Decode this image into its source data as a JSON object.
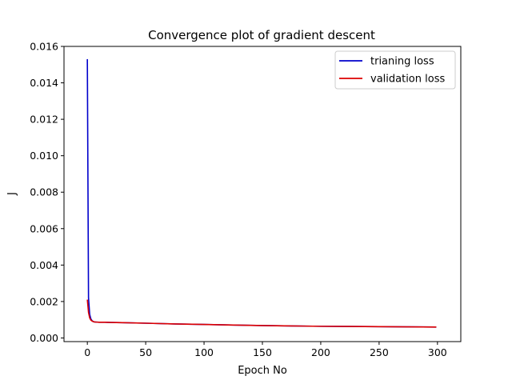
{
  "chart_data": {
    "type": "line",
    "title": "Convergence plot of gradient descent",
    "xlabel": "Epoch No",
    "ylabel": "J",
    "xlim": [
      -20,
      320
    ],
    "ylim": [
      -0.0002,
      0.016
    ],
    "xticks": [
      0,
      50,
      100,
      150,
      200,
      250,
      300
    ],
    "xtick_labels": [
      "0",
      "50",
      "100",
      "150",
      "200",
      "250",
      "300"
    ],
    "yticks": [
      0.0,
      0.002,
      0.004,
      0.006,
      0.008,
      0.01,
      0.012,
      0.014,
      0.016
    ],
    "ytick_labels": [
      "0.000",
      "0.002",
      "0.004",
      "0.006",
      "0.008",
      "0.010",
      "0.012",
      "0.014",
      "0.016"
    ],
    "grid": false,
    "legend_position": "top-right",
    "series": [
      {
        "name": "trianing loss",
        "color": "#0000cc",
        "x": [
          0,
          1,
          2,
          3,
          4,
          5,
          6,
          8,
          10,
          15,
          20,
          30,
          50,
          75,
          100,
          125,
          150,
          175,
          200,
          225,
          250,
          275,
          299
        ],
        "y": [
          0.0153,
          0.0022,
          0.0013,
          0.00105,
          0.00095,
          0.0009,
          0.00088,
          0.00087,
          0.00086,
          0.00086,
          0.00085,
          0.00084,
          0.00081,
          0.00077,
          0.00074,
          0.00071,
          0.00068,
          0.00066,
          0.00064,
          0.00063,
          0.00062,
          0.00061,
          0.0006
        ]
      },
      {
        "name": "validation loss",
        "color": "#dd0000",
        "x": [
          0,
          1,
          2,
          3,
          4,
          5,
          6,
          8,
          10,
          15,
          20,
          30,
          50,
          75,
          100,
          125,
          150,
          175,
          200,
          225,
          250,
          275,
          299
        ],
        "y": [
          0.0021,
          0.0014,
          0.0011,
          0.00098,
          0.00093,
          0.0009,
          0.00088,
          0.00087,
          0.00086,
          0.00086,
          0.00085,
          0.00084,
          0.00081,
          0.00077,
          0.00074,
          0.00071,
          0.00068,
          0.00066,
          0.00064,
          0.00063,
          0.00062,
          0.00061,
          0.0006
        ]
      }
    ]
  }
}
